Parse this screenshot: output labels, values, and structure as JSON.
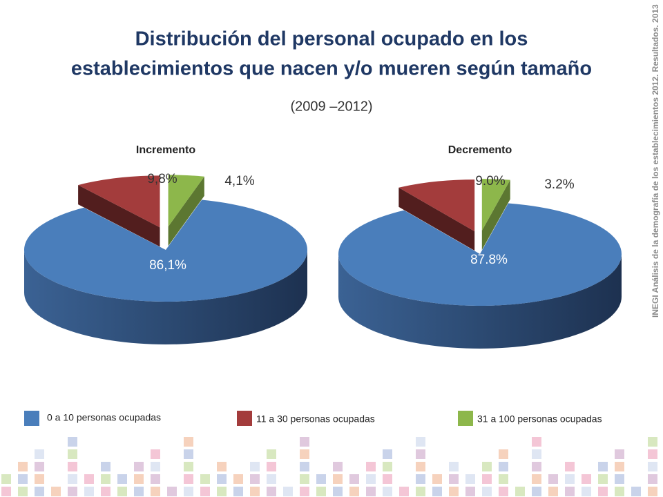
{
  "slide": {
    "title_lines": [
      "Distribución del personal ocupado en los",
      "establecimientos que nacen y/o mueren según tamaño"
    ],
    "subtitle": "(2009 –2012)",
    "source": "INEGI Análisis de la demografía de los establecimientos 2012. Resultados. 2013"
  },
  "legend": {
    "names": [
      "0 a 10 personas ocupadas",
      "11 a 30 personas ocupadas",
      "31 a 100 personas ocupadas"
    ],
    "colors": [
      "#4a7ebb",
      "#a33c3c",
      "#8db74b"
    ]
  },
  "chart_data": [
    {
      "type": "pie",
      "title": "Incremento",
      "values": [
        86.1,
        9.8,
        4.1
      ],
      "value_labels": [
        "86,1%",
        "9,8%",
        "4,1%"
      ]
    },
    {
      "type": "pie",
      "title": "Decremento",
      "values": [
        87.8,
        9.0,
        3.2
      ],
      "value_labels": [
        "87.8%",
        "9.0%",
        "3.2%"
      ]
    }
  ]
}
